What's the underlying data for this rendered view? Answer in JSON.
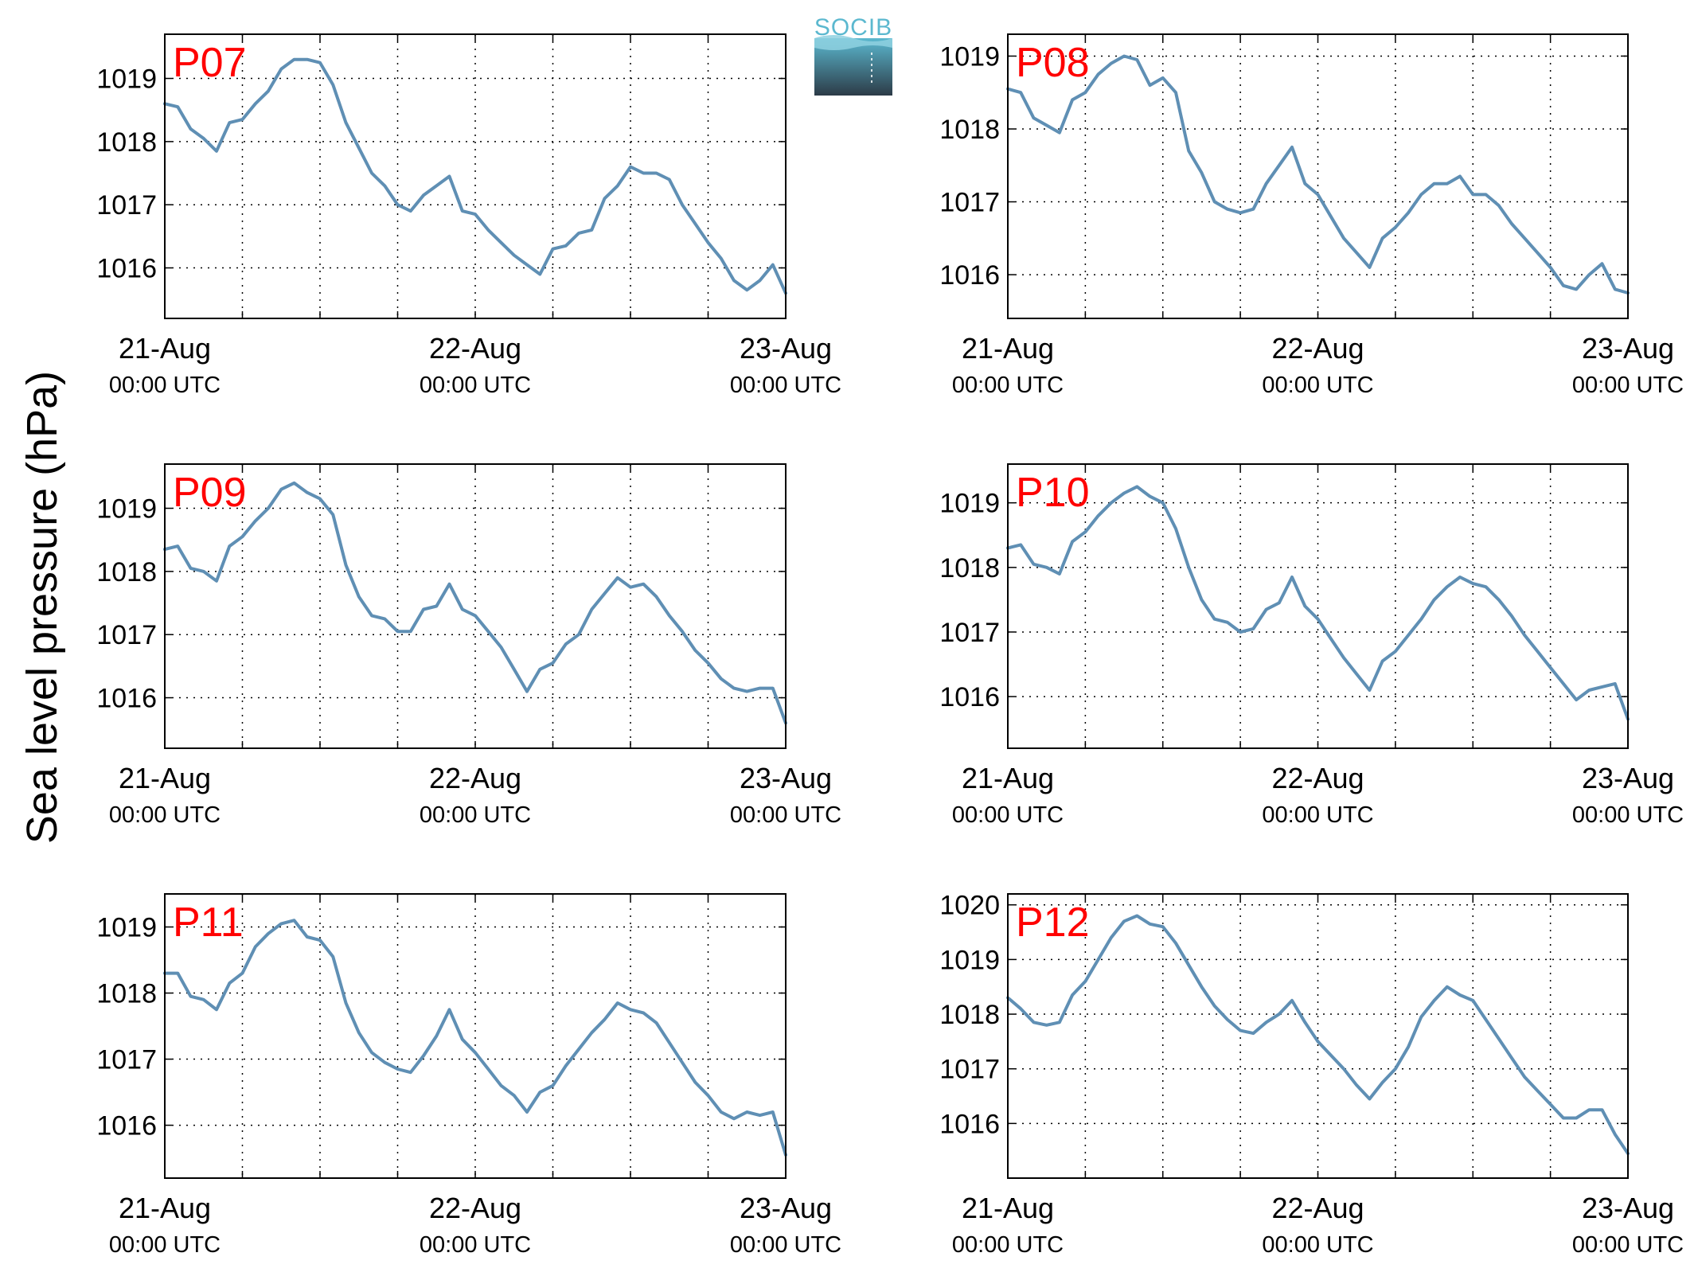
{
  "figure": {
    "ylabel": "Sea level pressure (hPa)",
    "logo_text": "SOCIB",
    "colors": {
      "line": "#5f8fb4",
      "panel_label": "#ff0000",
      "axes": "#000000",
      "grid": "#000000",
      "logo_top": "#5bb8cf",
      "logo_bottom": "#2c3b47"
    }
  },
  "chart_data": [
    {
      "type": "line",
      "panel_label": "P07",
      "x_ticks": [
        {
          "date": "21-Aug",
          "time": "00:00 UTC"
        },
        {
          "date": "22-Aug",
          "time": "00:00 UTC"
        },
        {
          "date": "23-Aug",
          "time": "00:00 UTC"
        }
      ],
      "xlim": [
        "2021-08-21T00:00",
        "2021-08-23T00:00"
      ],
      "ylim": [
        1015.2,
        1019.7
      ],
      "yticks": [
        1016,
        1017,
        1018,
        1019
      ],
      "grid": true,
      "series": [
        {
          "x_hours": [
            0,
            1,
            2,
            3,
            4,
            5,
            6,
            7,
            8,
            9,
            10,
            11,
            12,
            13,
            14,
            15,
            16,
            17,
            18,
            19,
            20,
            21,
            22,
            23,
            24,
            25,
            26,
            27,
            28,
            29,
            30,
            31,
            32,
            33,
            34,
            35,
            36,
            37,
            38,
            39,
            40,
            41,
            42,
            43,
            44,
            45,
            46,
            47,
            48
          ],
          "values": [
            1018.6,
            1018.55,
            1018.2,
            1018.05,
            1017.85,
            1018.3,
            1018.35,
            1018.6,
            1018.8,
            1019.15,
            1019.3,
            1019.3,
            1019.25,
            1018.9,
            1018.3,
            1017.9,
            1017.5,
            1017.3,
            1017.0,
            1016.9,
            1017.15,
            1017.3,
            1017.45,
            1016.9,
            1016.85,
            1016.6,
            1016.4,
            1016.2,
            1016.05,
            1015.9,
            1016.3,
            1016.35,
            1016.55,
            1016.6,
            1017.1,
            1017.3,
            1017.6,
            1017.5,
            1017.5,
            1017.4,
            1017.0,
            1016.7,
            1016.4,
            1016.15,
            1015.8,
            1015.65,
            1015.8,
            1016.05,
            1015.6
          ]
        }
      ]
    },
    {
      "type": "line",
      "panel_label": "P08",
      "x_ticks": [
        {
          "date": "21-Aug",
          "time": "00:00 UTC"
        },
        {
          "date": "22-Aug",
          "time": "00:00 UTC"
        },
        {
          "date": "23-Aug",
          "time": "00:00 UTC"
        }
      ],
      "xlim": [
        "2021-08-21T00:00",
        "2021-08-23T00:00"
      ],
      "ylim": [
        1015.4,
        1019.3
      ],
      "yticks": [
        1016,
        1017,
        1018,
        1019
      ],
      "grid": true,
      "series": [
        {
          "x_hours": [
            0,
            1,
            2,
            3,
            4,
            5,
            6,
            7,
            8,
            9,
            10,
            11,
            12,
            13,
            14,
            15,
            16,
            17,
            18,
            19,
            20,
            21,
            22,
            23,
            24,
            25,
            26,
            27,
            28,
            29,
            30,
            31,
            32,
            33,
            34,
            35,
            36,
            37,
            38,
            39,
            40,
            41,
            42,
            43,
            44,
            45,
            46,
            47,
            48
          ],
          "values": [
            1018.55,
            1018.5,
            1018.15,
            1018.05,
            1017.95,
            1018.4,
            1018.5,
            1018.75,
            1018.9,
            1019.0,
            1018.95,
            1018.6,
            1018.7,
            1018.5,
            1017.7,
            1017.4,
            1017.0,
            1016.9,
            1016.85,
            1016.9,
            1017.25,
            1017.5,
            1017.75,
            1017.25,
            1017.1,
            1016.8,
            1016.5,
            1016.3,
            1016.1,
            1016.5,
            1016.65,
            1016.85,
            1017.1,
            1017.25,
            1017.25,
            1017.35,
            1017.1,
            1017.1,
            1016.95,
            1016.7,
            1016.5,
            1016.3,
            1016.1,
            1015.85,
            1015.8,
            1016.0,
            1016.15,
            1015.8,
            1015.75
          ]
        }
      ]
    },
    {
      "type": "line",
      "panel_label": "P09",
      "x_ticks": [
        {
          "date": "21-Aug",
          "time": "00:00 UTC"
        },
        {
          "date": "22-Aug",
          "time": "00:00 UTC"
        },
        {
          "date": "23-Aug",
          "time": "00:00 UTC"
        }
      ],
      "xlim": [
        "2021-08-21T00:00",
        "2021-08-23T00:00"
      ],
      "ylim": [
        1015.2,
        1019.7
      ],
      "yticks": [
        1016,
        1017,
        1018,
        1019
      ],
      "grid": true,
      "series": [
        {
          "x_hours": [
            0,
            1,
            2,
            3,
            4,
            5,
            6,
            7,
            8,
            9,
            10,
            11,
            12,
            13,
            14,
            15,
            16,
            17,
            18,
            19,
            20,
            21,
            22,
            23,
            24,
            25,
            26,
            27,
            28,
            29,
            30,
            31,
            32,
            33,
            34,
            35,
            36,
            37,
            38,
            39,
            40,
            41,
            42,
            43,
            44,
            45,
            46,
            47,
            48
          ],
          "values": [
            1018.35,
            1018.4,
            1018.05,
            1018.0,
            1017.85,
            1018.4,
            1018.55,
            1018.8,
            1019.0,
            1019.3,
            1019.4,
            1019.25,
            1019.15,
            1018.9,
            1018.1,
            1017.6,
            1017.3,
            1017.25,
            1017.05,
            1017.05,
            1017.4,
            1017.45,
            1017.8,
            1017.4,
            1017.3,
            1017.05,
            1016.8,
            1016.45,
            1016.1,
            1016.45,
            1016.55,
            1016.85,
            1017.0,
            1017.4,
            1017.65,
            1017.9,
            1017.75,
            1017.8,
            1017.6,
            1017.3,
            1017.05,
            1016.75,
            1016.55,
            1016.3,
            1016.15,
            1016.1,
            1016.15,
            1016.15,
            1015.6
          ]
        }
      ]
    },
    {
      "type": "line",
      "panel_label": "P10",
      "x_ticks": [
        {
          "date": "21-Aug",
          "time": "00:00 UTC"
        },
        {
          "date": "22-Aug",
          "time": "00:00 UTC"
        },
        {
          "date": "23-Aug",
          "time": "00:00 UTC"
        }
      ],
      "xlim": [
        "2021-08-21T00:00",
        "2021-08-23T00:00"
      ],
      "ylim": [
        1015.2,
        1019.6
      ],
      "yticks": [
        1016,
        1017,
        1018,
        1019
      ],
      "grid": true,
      "series": [
        {
          "x_hours": [
            0,
            1,
            2,
            3,
            4,
            5,
            6,
            7,
            8,
            9,
            10,
            11,
            12,
            13,
            14,
            15,
            16,
            17,
            18,
            19,
            20,
            21,
            22,
            23,
            24,
            25,
            26,
            27,
            28,
            29,
            30,
            31,
            32,
            33,
            34,
            35,
            36,
            37,
            38,
            39,
            40,
            41,
            42,
            43,
            44,
            45,
            46,
            47,
            48
          ],
          "values": [
            1018.3,
            1018.35,
            1018.05,
            1018.0,
            1017.9,
            1018.4,
            1018.55,
            1018.8,
            1019.0,
            1019.15,
            1019.25,
            1019.1,
            1019.0,
            1018.6,
            1018.0,
            1017.5,
            1017.2,
            1017.15,
            1017.0,
            1017.05,
            1017.35,
            1017.45,
            1017.85,
            1017.4,
            1017.2,
            1016.9,
            1016.6,
            1016.35,
            1016.1,
            1016.55,
            1016.7,
            1016.95,
            1017.2,
            1017.5,
            1017.7,
            1017.85,
            1017.75,
            1017.7,
            1017.5,
            1017.25,
            1016.95,
            1016.7,
            1016.45,
            1016.2,
            1015.95,
            1016.1,
            1016.15,
            1016.2,
            1015.65
          ]
        }
      ]
    },
    {
      "type": "line",
      "panel_label": "P11",
      "x_ticks": [
        {
          "date": "21-Aug",
          "time": "00:00 UTC"
        },
        {
          "date": "22-Aug",
          "time": "00:00 UTC"
        },
        {
          "date": "23-Aug",
          "time": "00:00 UTC"
        }
      ],
      "xlim": [
        "2021-08-21T00:00",
        "2021-08-23T00:00"
      ],
      "ylim": [
        1015.2,
        1019.5
      ],
      "yticks": [
        1016,
        1017,
        1018,
        1019
      ],
      "grid": true,
      "series": [
        {
          "x_hours": [
            0,
            1,
            2,
            3,
            4,
            5,
            6,
            7,
            8,
            9,
            10,
            11,
            12,
            13,
            14,
            15,
            16,
            17,
            18,
            19,
            20,
            21,
            22,
            23,
            24,
            25,
            26,
            27,
            28,
            29,
            30,
            31,
            32,
            33,
            34,
            35,
            36,
            37,
            38,
            39,
            40,
            41,
            42,
            43,
            44,
            45,
            46,
            47,
            48
          ],
          "values": [
            1018.3,
            1018.3,
            1017.95,
            1017.9,
            1017.75,
            1018.15,
            1018.3,
            1018.7,
            1018.9,
            1019.05,
            1019.1,
            1018.85,
            1018.8,
            1018.55,
            1017.85,
            1017.4,
            1017.1,
            1016.95,
            1016.85,
            1016.8,
            1017.05,
            1017.35,
            1017.75,
            1017.3,
            1017.1,
            1016.85,
            1016.6,
            1016.45,
            1016.2,
            1016.5,
            1016.6,
            1016.9,
            1017.15,
            1017.4,
            1017.6,
            1017.85,
            1017.75,
            1017.7,
            1017.55,
            1017.25,
            1016.95,
            1016.65,
            1016.45,
            1016.2,
            1016.1,
            1016.2,
            1016.15,
            1016.2,
            1015.55
          ]
        }
      ]
    },
    {
      "type": "line",
      "panel_label": "P12",
      "x_ticks": [
        {
          "date": "21-Aug",
          "time": "00:00 UTC"
        },
        {
          "date": "22-Aug",
          "time": "00:00 UTC"
        },
        {
          "date": "23-Aug",
          "time": "00:00 UTC"
        }
      ],
      "xlim": [
        "2021-08-21T00:00",
        "2021-08-23T00:00"
      ],
      "ylim": [
        1015.0,
        1020.2
      ],
      "yticks": [
        1016,
        1017,
        1018,
        1019,
        1020
      ],
      "grid": true,
      "series": [
        {
          "x_hours": [
            0,
            1,
            2,
            3,
            4,
            5,
            6,
            7,
            8,
            9,
            10,
            11,
            12,
            13,
            14,
            15,
            16,
            17,
            18,
            19,
            20,
            21,
            22,
            23,
            24,
            25,
            26,
            27,
            28,
            29,
            30,
            31,
            32,
            33,
            34,
            35,
            36,
            37,
            38,
            39,
            40,
            41,
            42,
            43,
            44,
            45,
            46,
            47,
            48
          ],
          "values": [
            1018.3,
            1018.1,
            1017.85,
            1017.8,
            1017.85,
            1018.35,
            1018.6,
            1019.0,
            1019.4,
            1019.7,
            1019.8,
            1019.65,
            1019.6,
            1019.3,
            1018.9,
            1018.5,
            1018.15,
            1017.9,
            1017.7,
            1017.65,
            1017.85,
            1018.0,
            1018.25,
            1017.85,
            1017.5,
            1017.25,
            1017.0,
            1016.7,
            1016.45,
            1016.75,
            1017.0,
            1017.4,
            1017.95,
            1018.25,
            1018.5,
            1018.35,
            1018.25,
            1017.9,
            1017.55,
            1017.2,
            1016.85,
            1016.6,
            1016.35,
            1016.1,
            1016.1,
            1016.25,
            1016.25,
            1015.8,
            1015.45
          ]
        }
      ]
    }
  ]
}
